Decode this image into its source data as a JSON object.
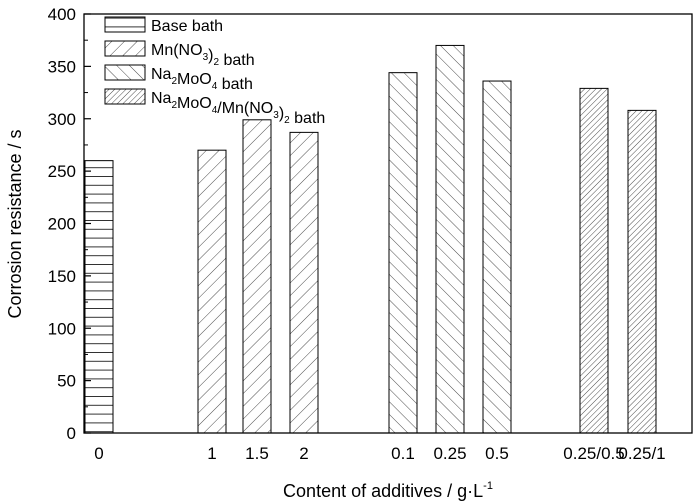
{
  "chart_data": {
    "type": "bar",
    "title": "",
    "xlabel": "Content of additives / g·L",
    "xlabel_sup": "-1",
    "ylabel": "Corrosion resistance / s",
    "ylim": [
      0,
      400
    ],
    "yticks": [
      0,
      50,
      100,
      150,
      200,
      250,
      300,
      350,
      400
    ],
    "categories": [
      "0",
      "1",
      "1.5",
      "2",
      "0.1",
      "0.25",
      "0.5",
      "0.25/0.5",
      "0.25/1"
    ],
    "values": [
      260,
      270,
      299,
      287,
      344,
      370,
      336,
      329,
      308
    ],
    "series_of_bar": [
      0,
      1,
      1,
      1,
      2,
      2,
      2,
      3,
      3
    ],
    "legend_position": "top-left",
    "legend": [
      {
        "name": "Base bath",
        "segments": [
          [
            "n",
            "Base bath"
          ]
        ]
      },
      {
        "name": "Mn(NO3)2 bath",
        "segments": [
          [
            "n",
            "Mn(NO"
          ],
          [
            "s",
            "3"
          ],
          [
            "n",
            ")"
          ],
          [
            "s",
            "2"
          ],
          [
            "n",
            " bath"
          ]
        ]
      },
      {
        "name": "Na2MoO4 bath",
        "segments": [
          [
            "n",
            "Na"
          ],
          [
            "s",
            "2"
          ],
          [
            "n",
            "MoO"
          ],
          [
            "s",
            "4"
          ],
          [
            "n",
            " bath"
          ]
        ]
      },
      {
        "name": "Na2MoO4/Mn(NO3)2 bath",
        "segments": [
          [
            "n",
            "Na"
          ],
          [
            "s",
            "2"
          ],
          [
            "n",
            "MoO"
          ],
          [
            "s",
            "4"
          ],
          [
            "n",
            "/Mn(NO"
          ],
          [
            "s",
            "3"
          ],
          [
            "n",
            ")"
          ],
          [
            "s",
            "2"
          ],
          [
            "n",
            " bath"
          ]
        ]
      }
    ]
  }
}
